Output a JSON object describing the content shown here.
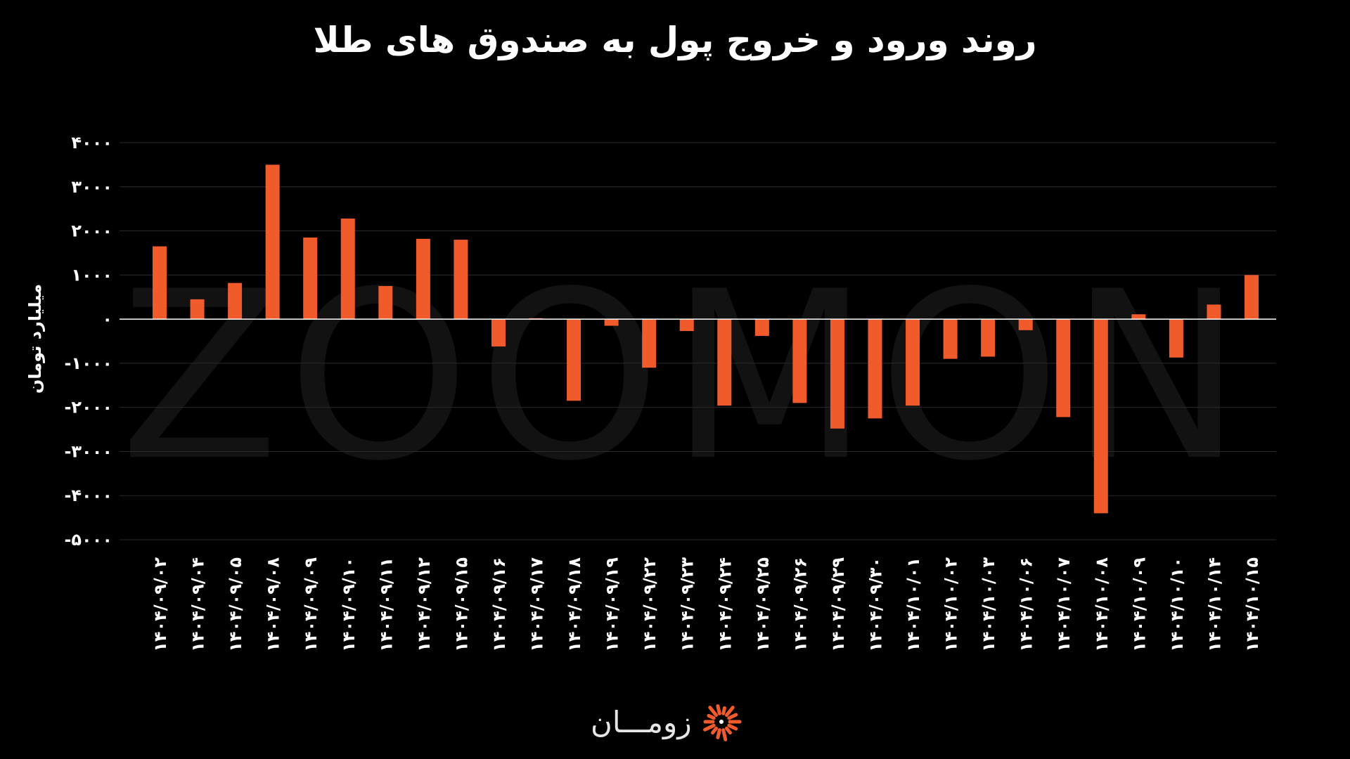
{
  "chart_data": {
    "type": "bar",
    "title": "روند ورود و خروج پول به صندوق های طلا",
    "ylabel": "میلیارد تومان",
    "xlabel": "",
    "ylim": [
      -5000,
      4000
    ],
    "yticks": [
      4000,
      3000,
      2000,
      1000,
      0,
      -1000,
      -2000,
      -3000,
      -4000,
      -5000
    ],
    "ytick_labels": [
      "۴۰۰۰",
      "۳۰۰۰",
      "۲۰۰۰",
      "۱۰۰۰",
      "۰",
      "-۱۰۰۰",
      "-۲۰۰۰",
      "-۳۰۰۰",
      "-۴۰۰۰",
      "-۵۰۰۰"
    ],
    "grid": true,
    "bar_color": "#f15a2b",
    "categories": [
      "۱۴۰۴/۰۹/۰۲",
      "۱۴۰۴/۰۹/۰۴",
      "۱۴۰۴/۰۹/۰۵",
      "۱۴۰۴/۰۹/۰۸",
      "۱۴۰۴/۰۹/۰۹",
      "۱۴۰۴/۰۹/۱۰",
      "۱۴۰۴/۰۹/۱۱",
      "۱۴۰۴/۰۹/۱۲",
      "۱۴۰۴/۰۹/۱۵",
      "۱۴۰۴/۰۹/۱۶",
      "۱۴۰۴/۰۹/۱۷",
      "۱۴۰۴/۰۹/۱۸",
      "۱۴۰۴/۰۹/۱۹",
      "۱۴۰۴/۰۹/۲۲",
      "۱۴۰۴/۰۹/۲۳",
      "۱۴۰۴/۰۹/۲۴",
      "۱۴۰۴/۰۹/۲۵",
      "۱۴۰۴/۰۹/۲۶",
      "۱۴۰۴/۰۹/۲۹",
      "۱۴۰۴/۰۹/۳۰",
      "۱۴۰۴/۱۰/۰۱",
      "۱۴۰۴/۱۰/۰۲",
      "۱۴۰۴/۱۰/۰۳",
      "۱۴۰۴/۱۰/۰۶",
      "۱۴۰۴/۱۰/۰۷",
      "۱۴۰۴/۱۰/۰۸",
      "۱۴۰۴/۱۰/۰۹",
      "۱۴۰۴/۱۰/۱۰",
      "۱۴۰۴/۱۰/۱۴",
      "۱۴۰۴/۱۰/۱۵"
    ],
    "values": [
      1650,
      450,
      820,
      3500,
      1850,
      2280,
      750,
      1820,
      1800,
      -620,
      20,
      -1850,
      -150,
      -1100,
      -270,
      -1960,
      -380,
      -1900,
      -2480,
      -2250,
      -1960,
      -900,
      -850,
      -250,
      -2220,
      -4400,
      110,
      -870,
      330,
      1000
    ]
  },
  "watermark": "ZOOMON",
  "brand": {
    "name": "زومـــان",
    "icon": "zooman-sunburst-logo-icon",
    "accent_color": "#f15a2b"
  }
}
